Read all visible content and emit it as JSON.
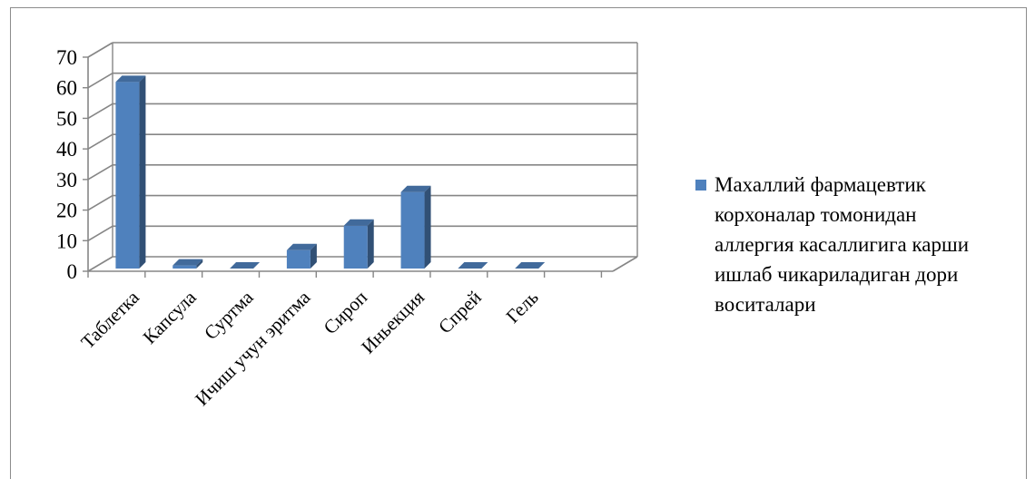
{
  "chart_data": {
    "type": "bar",
    "style": "3d-column",
    "categories": [
      "Таблетка",
      "Капсула",
      "Суртма",
      "Ичиш учун эритма",
      "Сироп",
      "Иньекция",
      "Спрей",
      "Гель"
    ],
    "series": [
      {
        "name": "Махаллий фармацевтик корхоналар томонидан аллергия касаллигига карши ишлаб чикариладиган дори воситалари",
        "values": [
          61,
          1,
          0,
          6,
          14,
          25,
          0,
          0
        ],
        "color": "#4F81BD"
      }
    ],
    "ylim": [
      0,
      70
    ],
    "yticks": [
      0,
      10,
      20,
      30,
      40,
      50,
      60,
      70
    ],
    "grid": true,
    "legend_position": "right",
    "legend_lines": [
      "Махаллий фармацевтик",
      "корхоналар томонидан",
      "аллергия касаллигига карши",
      "ишлаб чикариладиган дори",
      "воситалари"
    ]
  }
}
